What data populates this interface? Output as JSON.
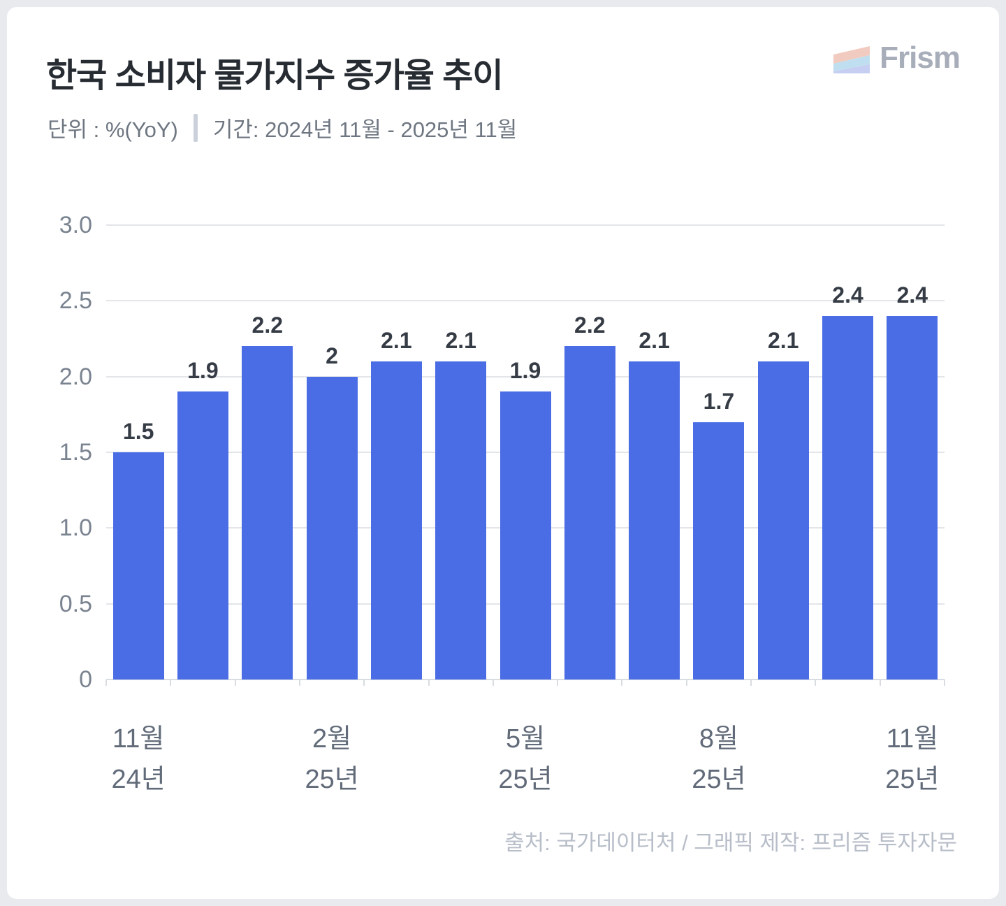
{
  "header": {
    "title": "한국 소비자 물가지수 증가율 추이",
    "unit_label": "단위 : %(YoY)",
    "period_label": "기간: 2024년 11월 - 2025년 11월",
    "logo_text": "Frism"
  },
  "footer": {
    "text": "출처: 국가데이터처 / 그래픽 제작: 프리즘 투자자문"
  },
  "colors": {
    "bar": "#4A6DE5",
    "grid": "#E3E5E9",
    "axis": "#D9DCE1",
    "title": "#272C33",
    "subtitle_text": "#6E7681",
    "value_label": "#363C45",
    "y_tick_label": "#7A8390",
    "x_tick_label": "#626B79",
    "footer_text": "#B8BEC9",
    "logo_text": "#A7ADB9",
    "logo_stripe_top": "#F2CBC0",
    "logo_stripe_middle": "#BFDFF0",
    "logo_stripe_bottom": "#C6CFF1",
    "card_background": "#FFFFFF",
    "page_background": "#E8EAEE"
  },
  "chart_data": {
    "type": "bar",
    "title": "한국 소비자 물가지수 증가율 추이",
    "unit": "%(YoY)",
    "period": "2024년 11월 - 2025년 11월",
    "values": [
      1.5,
      1.9,
      2.2,
      2,
      2.1,
      2.1,
      1.9,
      2.2,
      2.1,
      1.7,
      2.1,
      2.4,
      2.4
    ],
    "bar_labels": [
      "1.5",
      "1.9",
      "2.2",
      "2",
      "2.1",
      "2.1",
      "1.9",
      "2.2",
      "2.1",
      "1.7",
      "2.1",
      "2.4",
      "2.4"
    ],
    "ylim": [
      0,
      3
    ],
    "y_tick_values": [
      3.0,
      2.5,
      2.0,
      1.5,
      1.0,
      0.5,
      0
    ],
    "y_tick_labels": [
      "3.0",
      "2.5",
      "2.0",
      "1.5",
      "1.0",
      "0.5",
      "0"
    ],
    "x_tick_labels": [
      {
        "month": "11월",
        "year": "24년",
        "bar_index": 0
      },
      {
        "month": "2월",
        "year": "25년",
        "bar_index": 3
      },
      {
        "month": "5월",
        "year": "25년",
        "bar_index": 6
      },
      {
        "month": "8월",
        "year": "25년",
        "bar_index": 9
      },
      {
        "month": "11월",
        "year": "25년",
        "bar_index": 12
      }
    ],
    "bar_color": "#4A6DE5",
    "grid": true,
    "legend": false
  }
}
